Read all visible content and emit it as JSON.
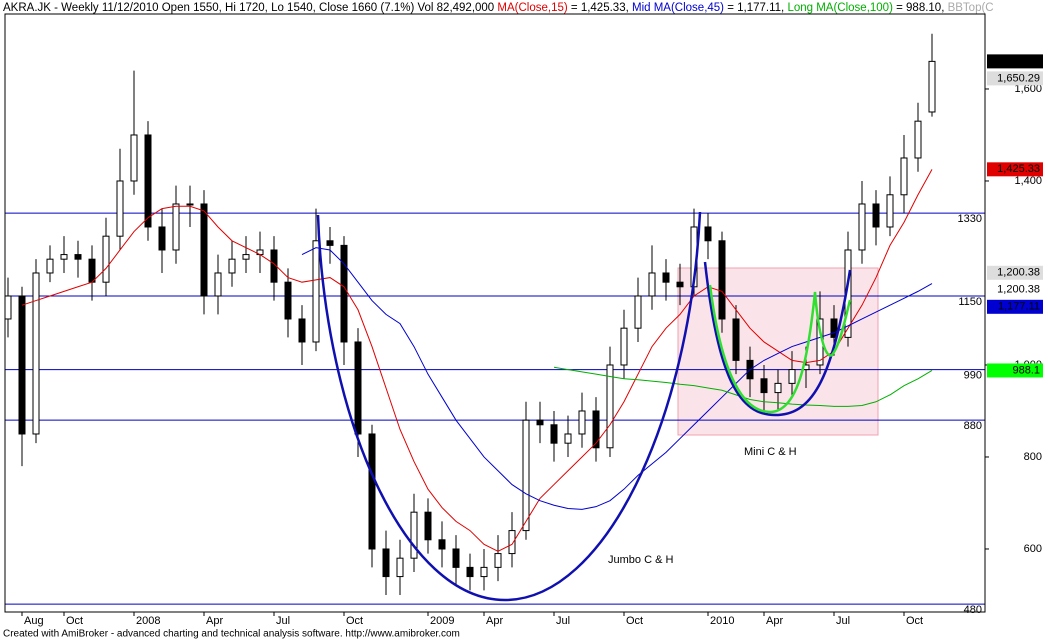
{
  "chart_data": {
    "type": "candlestick",
    "header": [
      {
        "text": "AKRA.JK - Weekly 11/12/2010 Open 1550, Hi 1720, Lo 1540, Close 1660 (7.1%) Vol 82,492,000 ",
        "color": "#000000"
      },
      {
        "text": "MA(Close,15)",
        "color": "#e00000"
      },
      {
        "text": " = 1,425.33, ",
        "color": "#000000"
      },
      {
        "text": "Mid MA(Close,45)",
        "color": "#0000d0"
      },
      {
        "text": " = 1,177.11, ",
        "color": "#000000"
      },
      {
        "text": "Long MA(Close,100)",
        "color": "#00b000"
      },
      {
        "text": " = 988.10, ",
        "color": "#000000"
      },
      {
        "text": "BBTop(C",
        "color": "#aaaaaa"
      }
    ],
    "footer": "Created with AmiBroker - advanced charting and technical analysis software. http://www.amibroker.com",
    "annotations": {
      "jumbo": "Jumbo C & H",
      "mini": "Mini C & H"
    },
    "categories": [
      null,
      "Aug",
      null,
      null,
      "Oct",
      null,
      null,
      null,
      null,
      "2008",
      null,
      null,
      null,
      null,
      "Apr",
      null,
      null,
      null,
      null,
      "Jul",
      null,
      null,
      null,
      null,
      "Oct",
      null,
      null,
      null,
      null,
      null,
      "2009",
      null,
      null,
      null,
      "Apr",
      null,
      null,
      null,
      null,
      "Jul",
      null,
      null,
      null,
      null,
      "Oct",
      null,
      null,
      null,
      null,
      null,
      "2010",
      null,
      null,
      null,
      "Apr",
      null,
      null,
      null,
      null,
      "Jul",
      null,
      null,
      null,
      null,
      "Oct",
      null,
      null
    ],
    "open": [
      1100,
      1150,
      850,
      1200,
      1230,
      1240,
      1230,
      1180,
      1280,
      1400,
      1500,
      1300,
      1250,
      1350,
      1350,
      1150,
      1200,
      1230,
      1240,
      1250,
      1180,
      1100,
      1050,
      1270,
      1260,
      1050,
      850,
      600,
      540,
      580,
      680,
      620,
      600,
      560,
      540,
      560,
      590,
      640,
      880,
      870,
      830,
      850,
      900,
      820,
      1000,
      1080,
      1150,
      1200,
      1180,
      1170,
      1300,
      1270,
      1100,
      1010,
      970,
      940,
      960,
      990,
      1000,
      1100,
      1060,
      1250,
      1350,
      1300,
      1370,
      1450,
      1550
    ],
    "high": [
      1190,
      1170,
      1230,
      1260,
      1280,
      1270,
      1260,
      1320,
      1470,
      1640,
      1530,
      1340,
      1390,
      1390,
      1380,
      1240,
      1270,
      1280,
      1290,
      1280,
      1210,
      1130,
      1340,
      1300,
      1280,
      1080,
      870,
      640,
      620,
      720,
      710,
      660,
      630,
      590,
      600,
      630,
      680,
      920,
      920,
      900,
      890,
      940,
      930,
      1040,
      1120,
      1190,
      1260,
      1230,
      1220,
      1340,
      1330,
      1290,
      1130,
      1040,
      1000,
      990,
      1030,
      1040,
      1160,
      1130,
      1290,
      1400,
      1380,
      1410,
      1500,
      1570,
      1720
    ],
    "low": [
      1060,
      780,
      830,
      1180,
      1200,
      1190,
      1140,
      1150,
      1250,
      1370,
      1270,
      1200,
      1220,
      1300,
      1110,
      1110,
      1170,
      1200,
      1200,
      1140,
      1060,
      1000,
      1030,
      1220,
      1000,
      800,
      560,
      500,
      500,
      550,
      590,
      560,
      520,
      510,
      510,
      530,
      560,
      620,
      830,
      790,
      800,
      820,
      790,
      800,
      970,
      1050,
      1120,
      1140,
      1130,
      1150,
      1230,
      1070,
      980,
      930,
      900,
      900,
      930,
      950,
      980,
      1020,
      1040,
      1220,
      1260,
      1280,
      1330,
      1420,
      1540
    ],
    "close": [
      1150,
      850,
      1200,
      1230,
      1240,
      1230,
      1180,
      1280,
      1400,
      1500,
      1300,
      1250,
      1350,
      1350,
      1150,
      1200,
      1230,
      1240,
      1250,
      1180,
      1100,
      1050,
      1270,
      1260,
      1050,
      850,
      600,
      540,
      580,
      680,
      620,
      600,
      560,
      540,
      560,
      590,
      640,
      880,
      870,
      830,
      850,
      900,
      820,
      1000,
      1080,
      1150,
      1200,
      1180,
      1170,
      1300,
      1270,
      1100,
      1010,
      970,
      940,
      960,
      990,
      1000,
      1100,
      1060,
      1250,
      1350,
      1300,
      1370,
      1450,
      1530,
      1660
    ],
    "series": [
      {
        "color": "#e00000",
        "values": [
          null,
          1130,
          1140,
          1150,
          1160,
          1170,
          1180,
          1210,
          1250,
          1290,
          1320,
          1340,
          1345,
          1345,
          1335,
          1300,
          1270,
          1255,
          1240,
          1220,
          1190,
          1180,
          1185,
          1190,
          1170,
          1120,
          1040,
          950,
          860,
          790,
          730,
          690,
          660,
          640,
          610,
          595,
          610,
          660,
          710,
          740,
          770,
          800,
          830,
          870,
          920,
          980,
          1040,
          1080,
          1110,
          1150,
          1170,
          1160,
          1120,
          1080,
          1050,
          1030,
          1010,
          1005,
          1010,
          1030,
          1080,
          1130,
          1190,
          1260,
          1310,
          1370,
          1425.33
        ]
      },
      {
        "color": "#0000d0",
        "values": [
          null,
          null,
          null,
          null,
          null,
          null,
          null,
          null,
          null,
          null,
          null,
          null,
          null,
          null,
          null,
          null,
          null,
          null,
          null,
          null,
          null,
          1240,
          1255,
          1250,
          1220,
          1180,
          1140,
          1110,
          1090,
          1040,
          980,
          930,
          880,
          840,
          800,
          770,
          740,
          720,
          705,
          695,
          688,
          686,
          692,
          705,
          730,
          760,
          785,
          810,
          840,
          870,
          900,
          930,
          960,
          990,
          1010,
          1025,
          1040,
          1050,
          1060,
          1070,
          1085,
          1100,
          1115,
          1130,
          1145,
          1160,
          1177.11
        ]
      },
      {
        "color": "#00b000",
        "values": [
          null,
          null,
          null,
          null,
          null,
          null,
          null,
          null,
          null,
          null,
          null,
          null,
          null,
          null,
          null,
          null,
          null,
          null,
          null,
          null,
          null,
          null,
          null,
          null,
          null,
          null,
          null,
          null,
          null,
          null,
          null,
          null,
          null,
          null,
          null,
          null,
          null,
          null,
          null,
          995,
          990,
          985,
          980,
          975,
          970,
          968,
          965,
          962,
          958,
          955,
          950,
          945,
          935,
          925,
          920,
          918,
          915,
          913,
          912,
          910,
          910,
          912,
          920,
          935,
          955,
          970,
          988.1
        ]
      }
    ],
    "levels": [
      1330,
      1150,
      990,
      880,
      480
    ],
    "level_color": "#0000c0",
    "price_labels": [
      {
        "value": 1660,
        "label": "1,660",
        "bg": "#000000",
        "fg": "#ffffff"
      },
      {
        "value": 1650.29,
        "label": "1,650.29",
        "bg": "#dddddd",
        "fg": "#000000"
      },
      {
        "value": 1425.33,
        "label": "1,425.33",
        "bg": "#e00000",
        "fg": "#000000"
      },
      {
        "value": 1200.38,
        "label": "1,200.38",
        "bg": "#dddddd",
        "fg": "#000000"
      },
      {
        "value": 1200.38,
        "label": "1,200.38",
        "bg": "#ffffff",
        "fg": "#000000"
      },
      {
        "value": 1177.11,
        "label": "1,177.11",
        "bg": "#0000d0",
        "fg": "#ffffff"
      },
      {
        "value": 988.1,
        "label": "988.1",
        "bg": "#00ff00",
        "fg": "#000000"
      }
    ],
    "ylim": [
      463,
      1763
    ],
    "yticks": [
      600,
      800,
      {
        "value": 1000,
        "label": "1,000"
      },
      {
        "value": 1400,
        "label": "1,400"
      },
      {
        "value": 1600,
        "label": "1,600"
      }
    ]
  }
}
